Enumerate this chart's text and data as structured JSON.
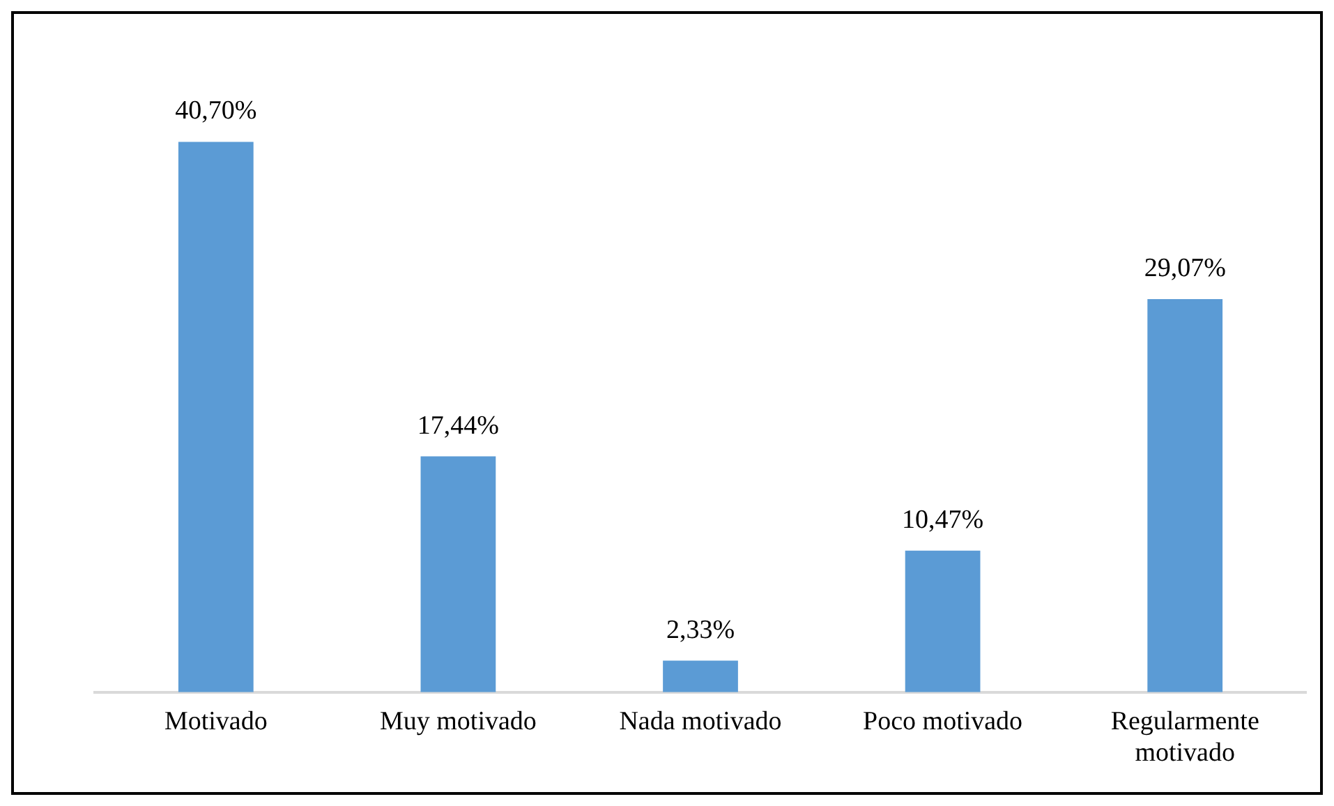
{
  "chart_data": {
    "type": "bar",
    "categories": [
      "Motivado",
      "Muy motivado",
      "Nada motivado",
      "Poco motivado",
      "Regularmente motivado"
    ],
    "values": [
      40.7,
      17.44,
      2.33,
      10.47,
      29.07
    ],
    "color": "#5b9bd5",
    "value_labels": [
      "40,70%",
      "17,44%",
      "2,33%",
      "10,47%",
      "29,07%"
    ],
    "grid": false,
    "legend": false
  }
}
